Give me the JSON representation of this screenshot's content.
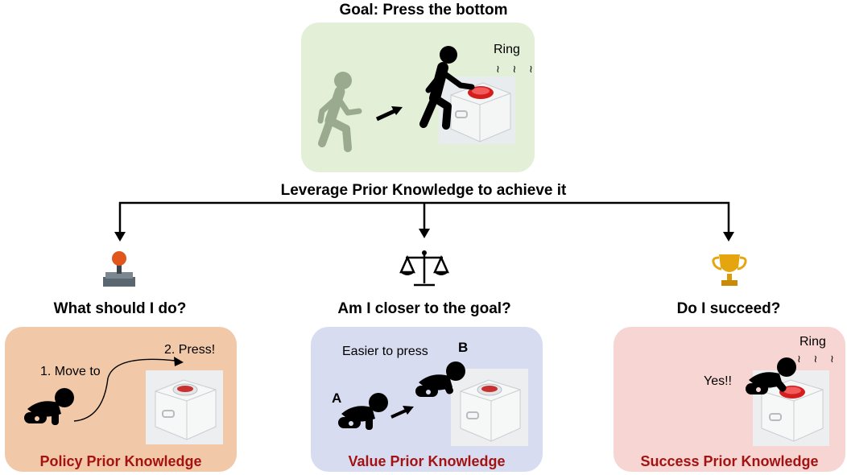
{
  "goal": {
    "title": "Goal: Press the bottom",
    "ring_label": "Ring",
    "subtitle": "Leverage Prior Knowledge to achieve it",
    "ring_marks": "≀ ≀ ≀"
  },
  "columns": [
    {
      "question": "What should I do?",
      "icon": "joystick-icon",
      "step1": "1. Move to",
      "step2": "2. Press!",
      "footer": "Policy Prior Knowledge",
      "bg": "#f2c9a8"
    },
    {
      "question": "Am I closer to the goal?",
      "icon": "scale-icon",
      "caption": "Easier to press",
      "marker_a": "A",
      "marker_b": "B",
      "footer": "Value Prior Knowledge",
      "bg": "#d7dcf1"
    },
    {
      "question": "Do I succeed?",
      "icon": "trophy-icon",
      "ring_label": "Ring",
      "ring_marks": "≀ ≀ ≀",
      "exclaim": "Yes!!",
      "footer": "Success Prior Knowledge",
      "bg": "#f6d5d2"
    }
  ],
  "colors": {
    "goal_bg": "#e3efd7",
    "accent_red": "#a51212",
    "ink": "#000000"
  }
}
